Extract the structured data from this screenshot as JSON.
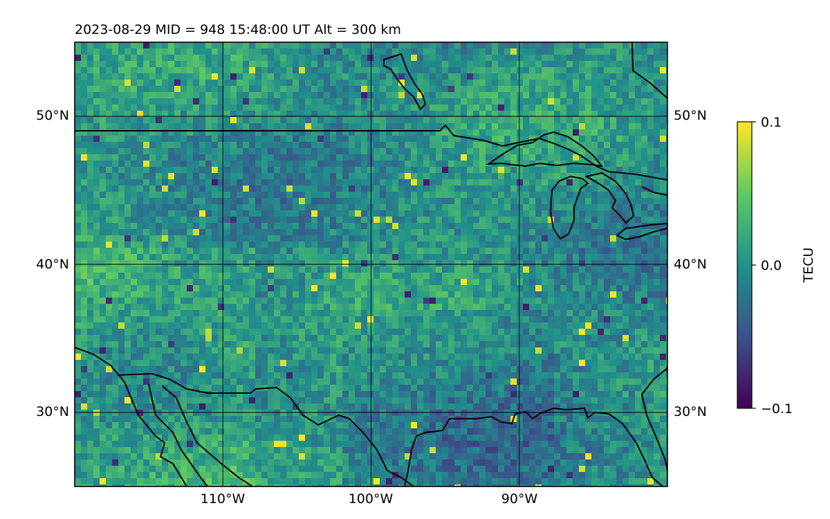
{
  "title": "2023-08-29  MID = 948    15:48:00  UT  Alt = 300 km",
  "map": {
    "lat_labels_left": [
      "50°N",
      "40°N",
      "30°N"
    ],
    "lat_labels_right": [
      "50°N",
      "40°N",
      "30°N"
    ],
    "lon_labels": [
      "110°W",
      "100°W",
      "90°W"
    ],
    "lat_values": [
      50,
      40,
      30
    ],
    "lon_values": [
      -110,
      -100,
      -90
    ],
    "extent": {
      "lon_min": -120,
      "lon_max": -80,
      "lat_min": 25,
      "lat_max": 55
    },
    "gridlines": true,
    "field": "TEC anomaly (dTEC) pixel map, viridis colormap, mostly near 0 with speckled positive (yellow) and negative (purple) cells"
  },
  "colorbar": {
    "label": "TECU",
    "ticks": [
      "0.1",
      "0.0",
      "−0.1"
    ],
    "vmin": -0.1,
    "vmax": 0.1,
    "colormap": "viridis",
    "colors": [
      "#440154",
      "#3b528b",
      "#21918c",
      "#5ec962",
      "#fde725"
    ]
  }
}
